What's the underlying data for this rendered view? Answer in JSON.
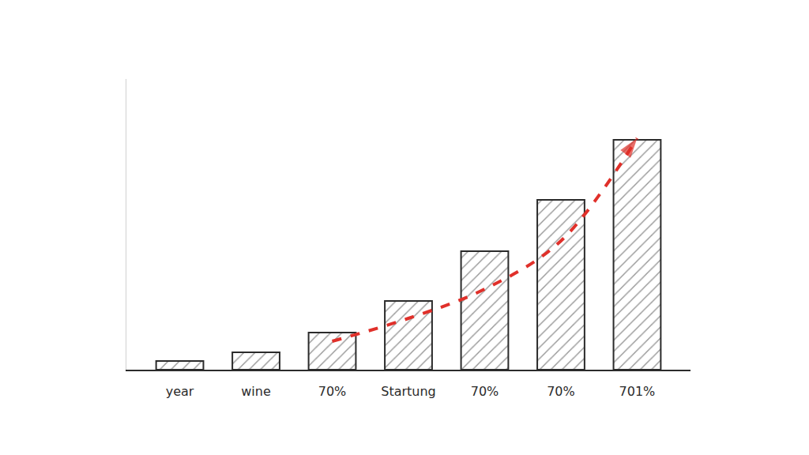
{
  "chart_data": {
    "type": "bar",
    "categories": [
      "year",
      "wine",
      "70%",
      "Startung",
      "70%",
      "70%",
      "701%"
    ],
    "series": [
      {
        "type": "bar",
        "color": "#ececec",
        "values": [
          11,
          22,
          47,
          87,
          150,
          215,
          291
        ]
      },
      {
        "type": "line",
        "color": "#e0302a",
        "line_style": "dashed",
        "marker": "arrow",
        "values": [
          null,
          null,
          36,
          65,
          102,
          163,
          293
        ]
      }
    ],
    "ylim": [
      0,
      368
    ],
    "tick_labels": "x",
    "grid": false
  }
}
